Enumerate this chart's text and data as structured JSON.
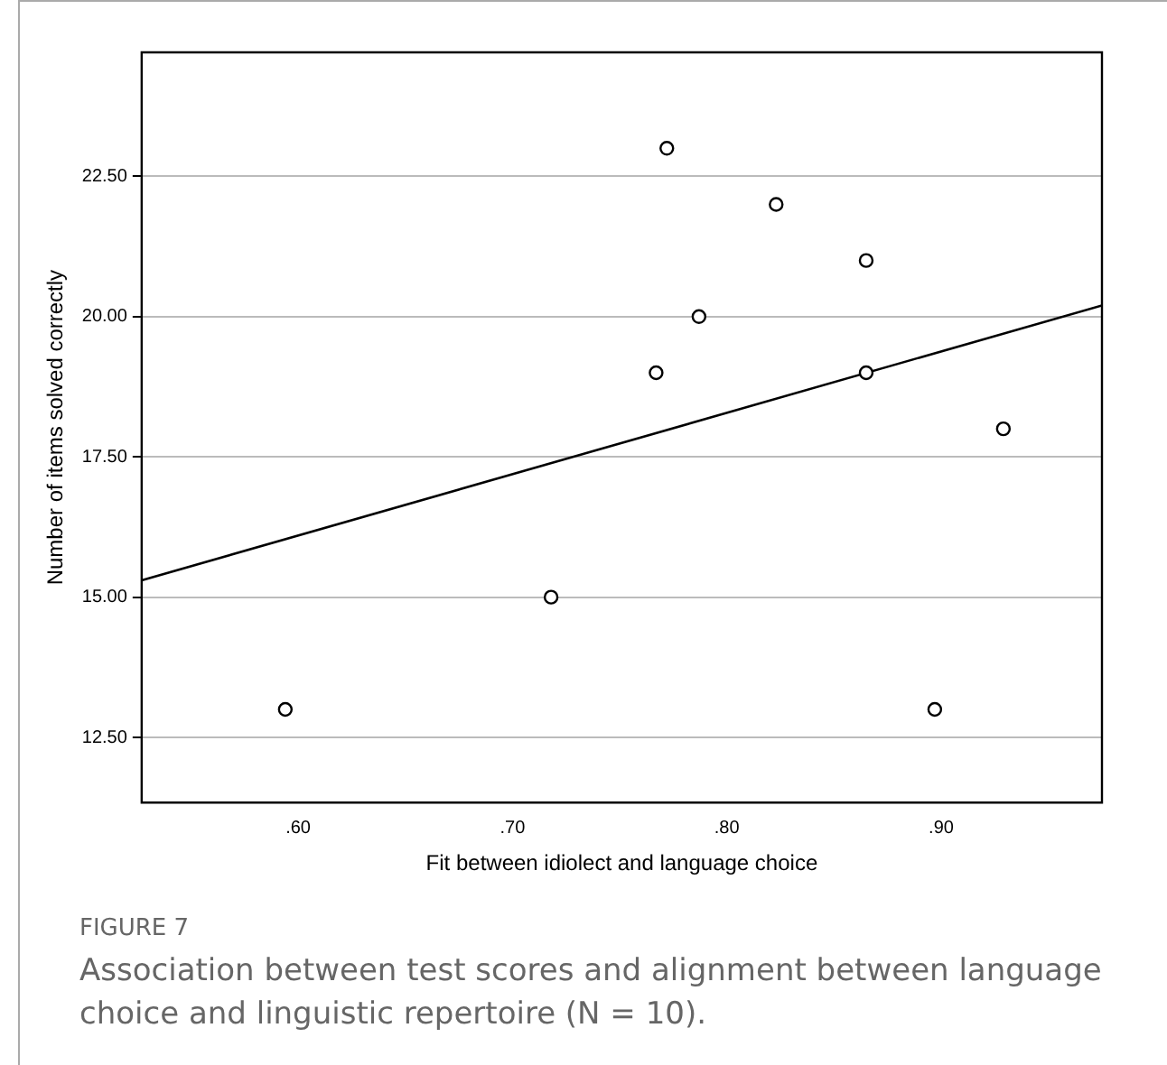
{
  "chart_data": {
    "type": "scatter",
    "xlabel": "Fit between idiolect and language choice",
    "ylabel": "Number of items solved correctly",
    "series": [
      {
        "marker": "circle",
        "color": "#000000",
        "x": [
          0.594,
          0.718,
          0.767,
          0.772,
          0.787,
          0.823,
          0.865,
          0.865,
          0.897,
          0.929
        ],
        "values": [
          13,
          15,
          19,
          23,
          20,
          22,
          21,
          19,
          13,
          18
        ]
      },
      {
        "type": "line",
        "marker": "none",
        "color": "#000000",
        "x": [
          0.527,
          0.975
        ],
        "values": [
          15.3,
          20.2
        ]
      }
    ],
    "xlim": [
      0.527,
      0.975
    ],
    "ylim": [
      11.34,
      24.71
    ],
    "xticks": [
      {
        "value": 0.6,
        "label": ".60"
      },
      {
        "value": 0.7,
        "label": ".70"
      },
      {
        "value": 0.8,
        "label": ".80"
      },
      {
        "value": 0.9,
        "label": ".90"
      }
    ],
    "yticks": [
      {
        "value": 12.5,
        "label": "12.50"
      },
      {
        "value": 15,
        "label": "15.00"
      },
      {
        "value": 17.5,
        "label": "17.50"
      },
      {
        "value": 20,
        "label": "20.00"
      },
      {
        "value": 22.5,
        "label": "22.50"
      }
    ],
    "grid": "y",
    "legend": false,
    "annotations": [
      "FIGURE 7",
      "Association between test scores and alignment between language choice and linguistic repertoire (N = 10)."
    ]
  }
}
